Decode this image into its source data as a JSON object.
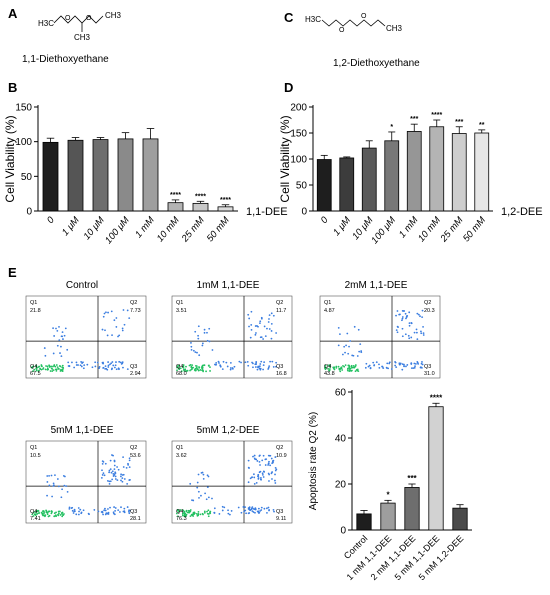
{
  "panels": {
    "a": "A",
    "b": "B",
    "c": "C",
    "d": "D",
    "e": "E"
  },
  "chem": {
    "a_name": "1,1-Diethoxyethane",
    "c_name": "1,2-Diethoxyethane",
    "a_h3c": "H3C",
    "a_ch3_right": "CH3",
    "a_ch3_bottom": "CH3",
    "c_h3c": "H3C",
    "c_ch3": "CH3"
  },
  "chart_data": [
    {
      "id": "B",
      "type": "bar",
      "categories": [
        "0",
        "1 μM",
        "10 μM",
        "100 μM",
        "1 mM",
        "10 mM",
        "25 mM",
        "50 mM"
      ],
      "values": [
        99,
        102,
        103,
        104,
        104,
        12,
        11,
        6
      ],
      "errors": [
        6,
        4,
        3,
        9,
        15,
        4,
        3,
        3
      ],
      "significance": [
        "",
        "",
        "",
        "",
        "",
        "****",
        "****",
        "****"
      ],
      "colors": [
        "#1e1e1e",
        "#555555",
        "#6e6e6e",
        "#8a8a8a",
        "#9e9e9e",
        "#b4b4b4",
        "#c8c8c8",
        "#dcdcdc"
      ],
      "ylabel": "Cell Viability (%)",
      "xlabel": "1,1-DEE",
      "ylim": [
        0,
        150
      ],
      "yticks": [
        0,
        50,
        100,
        150
      ]
    },
    {
      "id": "D",
      "type": "bar",
      "categories": [
        "0",
        "1 μM",
        "10 μM",
        "100 μM",
        "1 mM",
        "10 mM",
        "25 mM",
        "50 mM"
      ],
      "values": [
        99,
        102,
        121,
        135,
        153,
        162,
        149,
        150
      ],
      "errors": [
        8,
        2,
        14,
        17,
        14,
        13,
        13,
        6
      ],
      "significance": [
        "",
        "",
        "",
        "*",
        "***",
        "****",
        "***",
        "**"
      ],
      "colors": [
        "#1e1e1e",
        "#3c3c3c",
        "#5a5a5a",
        "#787878",
        "#969696",
        "#b4b4b4",
        "#cecece",
        "#e6e6e6"
      ],
      "ylabel": "Cell Viability (%)",
      "xlabel": "1,2-DEE",
      "ylim": [
        0,
        200
      ],
      "yticks": [
        0,
        50,
        100,
        150,
        200
      ]
    },
    {
      "id": "E-bar",
      "type": "bar",
      "categories": [
        "Control",
        "1 mM 1,1-DEE",
        "2 mM 1,1-DEE",
        "5 mM 1,1-DEE",
        "5 mM 1,2-DEE"
      ],
      "values": [
        7,
        11.7,
        18.5,
        53.6,
        9.5
      ],
      "errors": [
        1.5,
        1.2,
        1.5,
        1.5,
        1.5
      ],
      "significance": [
        "",
        "*",
        "***",
        "****",
        ""
      ],
      "colors": [
        "#1e1e1e",
        "#9e9e9e",
        "#6e6e6e",
        "#d2d2d2",
        "#4a4a4a"
      ],
      "ylabel": "Apoptosis rate Q2 (%)",
      "ylim": [
        0,
        60
      ],
      "yticks": [
        0,
        20,
        40,
        60
      ]
    }
  ],
  "flow": [
    {
      "title": "Control",
      "q1": "Q1",
      "q1v": "21.8",
      "q2": "Q2",
      "q2v": "7.73",
      "q3": "Q3",
      "q3v": "2.94",
      "q4": "Q4",
      "q4v": "67.5"
    },
    {
      "title": "1mM 1,1-DEE",
      "q1": "Q1",
      "q1v": "3.51",
      "q2": "Q2",
      "q2v": "11.7",
      "q3": "Q3",
      "q3v": "16.8",
      "q4": "Q4",
      "q4v": "68.0"
    },
    {
      "title": "2mM 1,1-DEE",
      "q1": "Q1",
      "q1v": "4.87",
      "q2": "Q2",
      "q2v": "20.3",
      "q3": "Q3",
      "q3v": "31.0",
      "q4": "Q4",
      "q4v": "43.8"
    },
    {
      "title": "5mM 1,1-DEE",
      "q1": "Q1",
      "q1v": "10.5",
      "q2": "Q2",
      "q2v": "53.6",
      "q3": "Q3",
      "q3v": "28.1",
      "q4": "Q4",
      "q4v": "7.41"
    },
    {
      "title": "5mM 1,2-DEE",
      "q1": "Q1",
      "q1v": "3.62",
      "q2": "Q2",
      "q2v": "10.9",
      "q3": "Q3",
      "q3v": "9.11",
      "q4": "Q4",
      "q4v": "76.3"
    }
  ]
}
